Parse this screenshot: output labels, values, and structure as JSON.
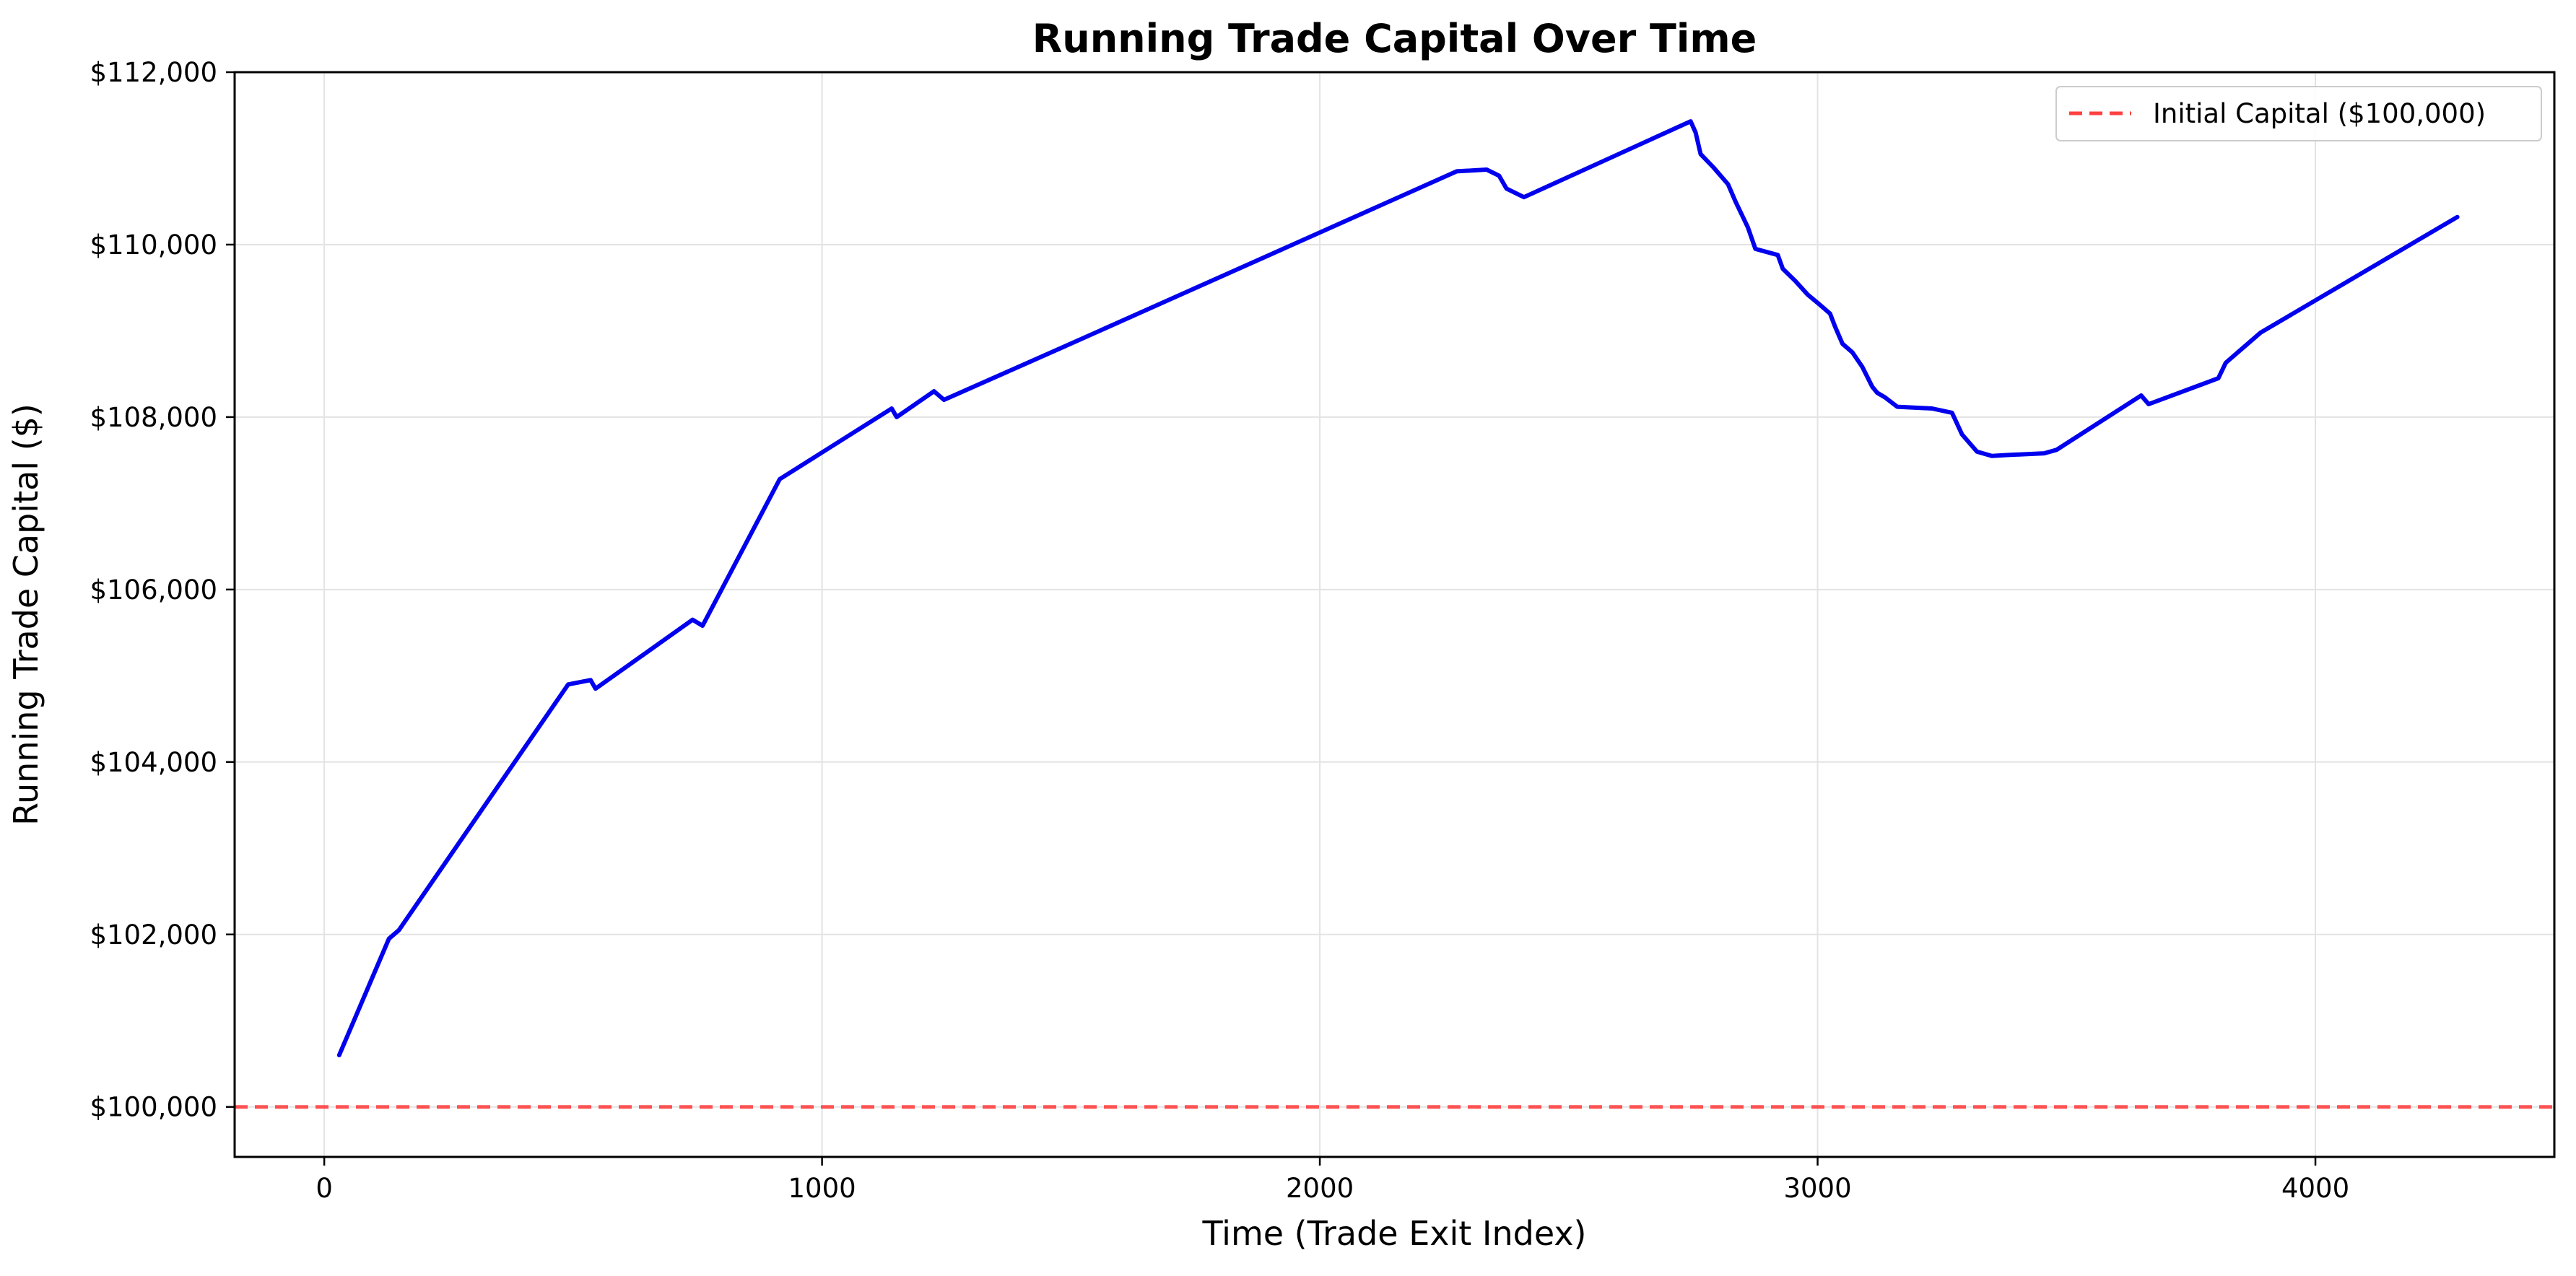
{
  "chart_data": {
    "type": "line",
    "title": "Running Trade Capital Over Time",
    "xlabel": "Time (Trade Exit Index)",
    "ylabel": "Running Trade Capital ($)",
    "xlim": [
      -180,
      4480
    ],
    "ylim": [
      99420,
      112000
    ],
    "x_ticks": [
      0,
      1000,
      2000,
      3000,
      4000
    ],
    "x_tick_labels": [
      "0",
      "1000",
      "2000",
      "3000",
      "4000"
    ],
    "y_ticks": [
      100000,
      102000,
      104000,
      106000,
      108000,
      110000,
      112000
    ],
    "y_tick_labels": [
      "$100,000",
      "$102,000",
      "$104,000",
      "$106,000",
      "$108,000",
      "$110,000",
      "$112,000"
    ],
    "grid": true,
    "legend_position": "top-right",
    "legend": [
      "Initial Capital ($100,000)"
    ],
    "reference_line": {
      "name": "Initial Capital ($100,000)",
      "y": 100000,
      "color": "#ff4040",
      "style": "dashed"
    },
    "series": [
      {
        "color": "#0000ee",
        "x": [
          30,
          130,
          150,
          490,
          535,
          545,
          740,
          760,
          915,
          1140,
          1150,
          1225,
          1245,
          1480,
          2275,
          2335,
          2360,
          2375,
          2410,
          2745,
          2755,
          2765,
          2790,
          2820,
          2835,
          2860,
          2875,
          2920,
          2930,
          2955,
          2980,
          3005,
          3025,
          3035,
          3050,
          3070,
          3090,
          3110,
          3120,
          3135,
          3160,
          3230,
          3270,
          3290,
          3320,
          3350,
          3380,
          3455,
          3480,
          3650,
          3665,
          3805,
          3820,
          3890,
          4285
        ],
        "y": [
          100600,
          101950,
          102050,
          104900,
          104950,
          104850,
          105650,
          105580,
          107280,
          108100,
          108000,
          108300,
          108200,
          108800,
          110850,
          110870,
          110800,
          110650,
          110550,
          111430,
          111300,
          111050,
          110900,
          110700,
          110500,
          110200,
          109950,
          109880,
          109720,
          109580,
          109420,
          109300,
          109200,
          109050,
          108850,
          108750,
          108580,
          108350,
          108280,
          108230,
          108120,
          108100,
          108050,
          107800,
          107600,
          107550,
          107560,
          107580,
          107620,
          108250,
          108150,
          108450,
          108630,
          108980,
          110320
        ]
      }
    ]
  }
}
